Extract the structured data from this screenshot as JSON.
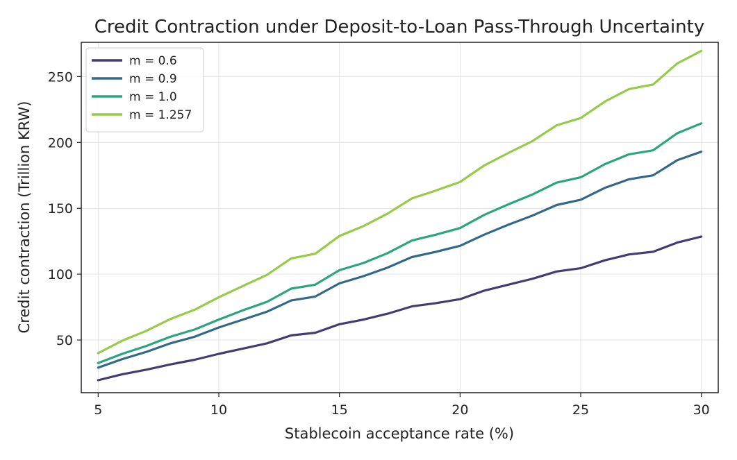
{
  "chart_data": {
    "type": "line",
    "title": "Credit Contraction under Deposit-to-Loan Pass-Through Uncertainty",
    "xlabel": "Stablecoin acceptance rate (%)",
    "ylabel": "Credit contraction (Trillion KRW)",
    "xlim": [
      4.3,
      30.7
    ],
    "ylim": [
      10,
      276
    ],
    "xticks": [
      5,
      10,
      15,
      20,
      25,
      30
    ],
    "yticks": [
      50,
      100,
      150,
      200,
      250
    ],
    "grid": true,
    "legend_position": "top-left",
    "x": [
      5,
      6,
      7,
      8,
      9,
      10,
      11,
      12,
      13,
      14,
      15,
      16,
      17,
      18,
      19,
      20,
      21,
      22,
      23,
      24,
      25,
      26,
      27,
      28,
      29,
      30
    ],
    "series": [
      {
        "name": "m = 0.6",
        "color": "#443a74",
        "values": [
          19.5,
          24,
          27.5,
          31.5,
          35,
          39.5,
          43.5,
          47.5,
          53.5,
          55.5,
          62,
          65.5,
          70,
          75.5,
          78,
          81,
          87.5,
          92,
          96.5,
          102,
          104.5,
          110.5,
          115,
          117,
          124,
          128.5
        ]
      },
      {
        "name": "m = 0.9",
        "color": "#32688a",
        "values": [
          29,
          35.5,
          41,
          47.5,
          52.5,
          59.5,
          65.5,
          71.5,
          80,
          83,
          93,
          98.5,
          105,
          113,
          117,
          121.5,
          130,
          137.5,
          144.5,
          152.5,
          156.5,
          165.5,
          172,
          175,
          186.5,
          193
        ]
      },
      {
        "name": "m = 1.0",
        "color": "#2aa57f",
        "values": [
          32.5,
          39.5,
          45.5,
          52.5,
          58,
          65.5,
          72.5,
          79,
          89,
          92,
          103,
          108.5,
          116,
          125.5,
          130,
          135,
          145,
          153,
          160.5,
          169.5,
          173.5,
          183.5,
          191,
          194,
          207,
          214.5
        ]
      },
      {
        "name": "m = 1.257",
        "color": "#95cb47",
        "values": [
          40,
          49.5,
          57,
          66,
          73,
          82.5,
          91,
          99.5,
          112,
          115.5,
          129,
          136.5,
          146,
          157.5,
          163.5,
          170,
          182.5,
          192,
          201,
          213,
          218.5,
          231,
          240.5,
          244,
          260,
          269.5
        ]
      }
    ]
  }
}
